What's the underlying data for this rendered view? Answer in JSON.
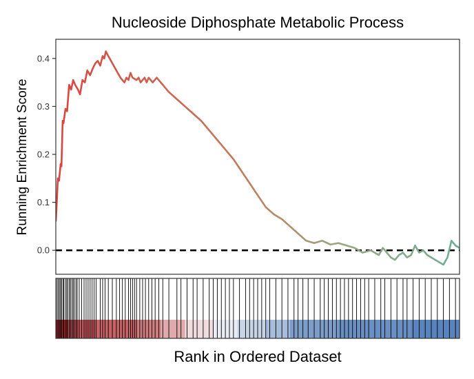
{
  "chart_data": {
    "type": "line",
    "title": "Nucleoside Diphosphate Metabolic Process",
    "ylabel": "Running Enrichment Score",
    "xlabel": "Rank in Ordered Dataset",
    "xlim": [
      0,
      1
    ],
    "ylim": [
      -0.05,
      0.44
    ],
    "yticks": [
      {
        "value": 0.0,
        "label": "0.0"
      },
      {
        "value": 0.1,
        "label": "0.1"
      },
      {
        "value": 0.2,
        "label": "0.2"
      },
      {
        "value": 0.3,
        "label": "0.3"
      },
      {
        "value": 0.4,
        "label": "0.4"
      }
    ],
    "reference_line": {
      "y": 0.0,
      "style": "dashed"
    },
    "grid": false,
    "legend": "none",
    "line_colors": {
      "start": "#d9443f",
      "end": "#6fae94"
    },
    "x": [
      0.0,
      0.003,
      0.005,
      0.008,
      0.012,
      0.014,
      0.017,
      0.019,
      0.024,
      0.028,
      0.033,
      0.038,
      0.043,
      0.048,
      0.055,
      0.06,
      0.066,
      0.072,
      0.078,
      0.085,
      0.092,
      0.098,
      0.104,
      0.11,
      0.116,
      0.12,
      0.124,
      0.13,
      0.14,
      0.15,
      0.16,
      0.17,
      0.175,
      0.18,
      0.185,
      0.19,
      0.2,
      0.205,
      0.21,
      0.22,
      0.225,
      0.23,
      0.24,
      0.245,
      0.25,
      0.26,
      0.27,
      0.28,
      0.3,
      0.32,
      0.34,
      0.36,
      0.38,
      0.4,
      0.42,
      0.44,
      0.46,
      0.48,
      0.5,
      0.52,
      0.54,
      0.56,
      0.58,
      0.6,
      0.62,
      0.64,
      0.66,
      0.68,
      0.7,
      0.72,
      0.74,
      0.76,
      0.78,
      0.8,
      0.81,
      0.82,
      0.83,
      0.84,
      0.85,
      0.86,
      0.87,
      0.88,
      0.89,
      0.9,
      0.91,
      0.92,
      0.93,
      0.94,
      0.95,
      0.96,
      0.97,
      0.98,
      0.99,
      1.0
    ],
    "y": [
      0.06,
      0.11,
      0.15,
      0.145,
      0.18,
      0.175,
      0.27,
      0.265,
      0.295,
      0.29,
      0.345,
      0.335,
      0.355,
      0.345,
      0.335,
      0.325,
      0.355,
      0.35,
      0.375,
      0.365,
      0.38,
      0.39,
      0.395,
      0.385,
      0.405,
      0.4,
      0.415,
      0.405,
      0.39,
      0.375,
      0.36,
      0.35,
      0.36,
      0.355,
      0.37,
      0.36,
      0.355,
      0.36,
      0.35,
      0.36,
      0.35,
      0.36,
      0.35,
      0.355,
      0.36,
      0.35,
      0.34,
      0.33,
      0.315,
      0.3,
      0.285,
      0.27,
      0.25,
      0.23,
      0.21,
      0.19,
      0.165,
      0.14,
      0.115,
      0.09,
      0.075,
      0.065,
      0.05,
      0.035,
      0.02,
      0.015,
      0.02,
      0.012,
      0.015,
      0.01,
      0.005,
      -0.005,
      0.0,
      -0.01,
      0.005,
      -0.005,
      -0.015,
      -0.02,
      -0.01,
      -0.005,
      -0.015,
      -0.01,
      0.01,
      -0.005,
      0.0,
      -0.01,
      -0.015,
      -0.02,
      -0.025,
      -0.03,
      -0.015,
      0.02,
      0.01,
      0.005
    ],
    "hit_positions": [
      0.003,
      0.006,
      0.009,
      0.012,
      0.014,
      0.018,
      0.02,
      0.024,
      0.027,
      0.03,
      0.034,
      0.036,
      0.04,
      0.043,
      0.046,
      0.05,
      0.053,
      0.058,
      0.064,
      0.07,
      0.075,
      0.08,
      0.085,
      0.09,
      0.095,
      0.1,
      0.11,
      0.116,
      0.122,
      0.13,
      0.14,
      0.15,
      0.158,
      0.165,
      0.172,
      0.18,
      0.185,
      0.19,
      0.195,
      0.2,
      0.208,
      0.215,
      0.222,
      0.23,
      0.238,
      0.246,
      0.255,
      0.265,
      0.28,
      0.3,
      0.31,
      0.325,
      0.34,
      0.35,
      0.365,
      0.38,
      0.39,
      0.4,
      0.41,
      0.42,
      0.43,
      0.44,
      0.455,
      0.47,
      0.48,
      0.49,
      0.5,
      0.51,
      0.52,
      0.53,
      0.545,
      0.56,
      0.575,
      0.59,
      0.6,
      0.612,
      0.625,
      0.64,
      0.655,
      0.665,
      0.675,
      0.685,
      0.695,
      0.705,
      0.715,
      0.725,
      0.735,
      0.745,
      0.755,
      0.765,
      0.775,
      0.79,
      0.805,
      0.815,
      0.83,
      0.845,
      0.86,
      0.87,
      0.885,
      0.9,
      0.915,
      0.93,
      0.945,
      0.96,
      0.975,
      0.99
    ],
    "rank_colorbar": [
      {
        "from": 0.0,
        "to": 0.03,
        "color": "#b52a2d"
      },
      {
        "from": 0.03,
        "to": 0.1,
        "color": "#c6565b"
      },
      {
        "from": 0.1,
        "to": 0.2,
        "color": "#c96266"
      },
      {
        "from": 0.2,
        "to": 0.26,
        "color": "#d07d80"
      },
      {
        "from": 0.26,
        "to": 0.32,
        "color": "#e0aaac"
      },
      {
        "from": 0.32,
        "to": 0.39,
        "color": "#f0dcdc"
      },
      {
        "from": 0.39,
        "to": 0.45,
        "color": "#e9edf3"
      },
      {
        "from": 0.45,
        "to": 0.52,
        "color": "#c7d4e6"
      },
      {
        "from": 0.52,
        "to": 0.58,
        "color": "#a6bcda"
      },
      {
        "from": 0.58,
        "to": 0.7,
        "color": "#7d9dc9"
      },
      {
        "from": 0.7,
        "to": 0.88,
        "color": "#6a8fc2"
      },
      {
        "from": 0.88,
        "to": 1.0,
        "color": "#5a84bd"
      }
    ]
  }
}
